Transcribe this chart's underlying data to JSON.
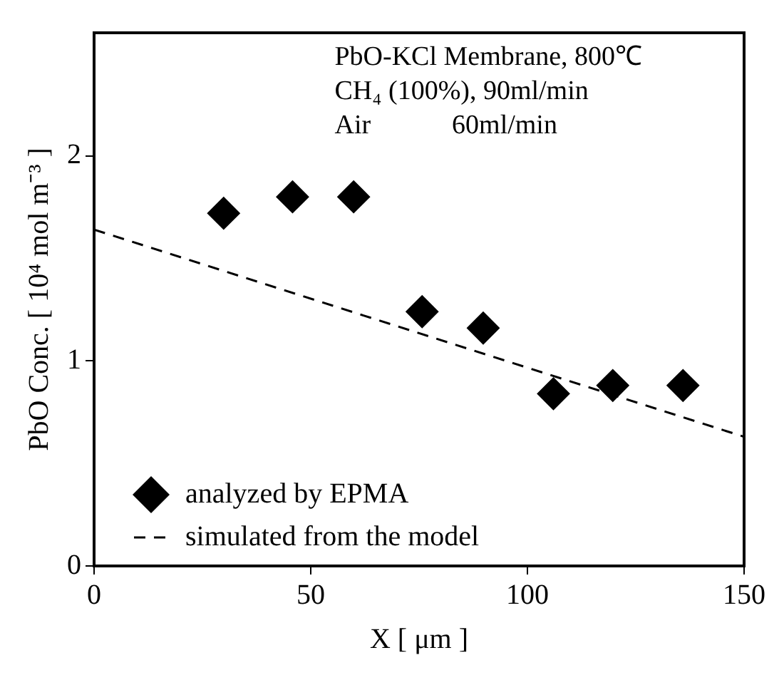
{
  "chart_data": {
    "type": "scatter",
    "xlabel": "X [ μm ]",
    "ylabel": "PbO Conc. [ 10⁴ mol m⁻³ ]",
    "annotations": [
      "PbO-KCl Membrane, 800℃",
      "CH₄ (100%), 90ml/min",
      "Air            60ml/min"
    ],
    "series": [
      {
        "name": "analyzed by EPMA",
        "color": "#000000",
        "marker": "diamond",
        "x": [
          29.9,
          45.8,
          59.9,
          75.7,
          89.8,
          106,
          119.7,
          135.9
        ],
        "values": [
          1.72,
          1.8,
          1.8,
          1.24,
          1.16,
          0.84,
          0.88,
          0.88
        ]
      },
      {
        "name": "simulated from the model",
        "type": "line",
        "color": "#000000",
        "line_style": "dashed",
        "marker": "none",
        "x": [
          0,
          150
        ],
        "values": [
          1.64,
          0.63
        ]
      }
    ],
    "xlim": [
      0,
      150
    ],
    "xticks": [
      0,
      50,
      100,
      150
    ],
    "ylim": [
      0,
      2.6
    ],
    "yticks": [
      0,
      1,
      2
    ],
    "grid": false,
    "legend": "bottom left"
  }
}
